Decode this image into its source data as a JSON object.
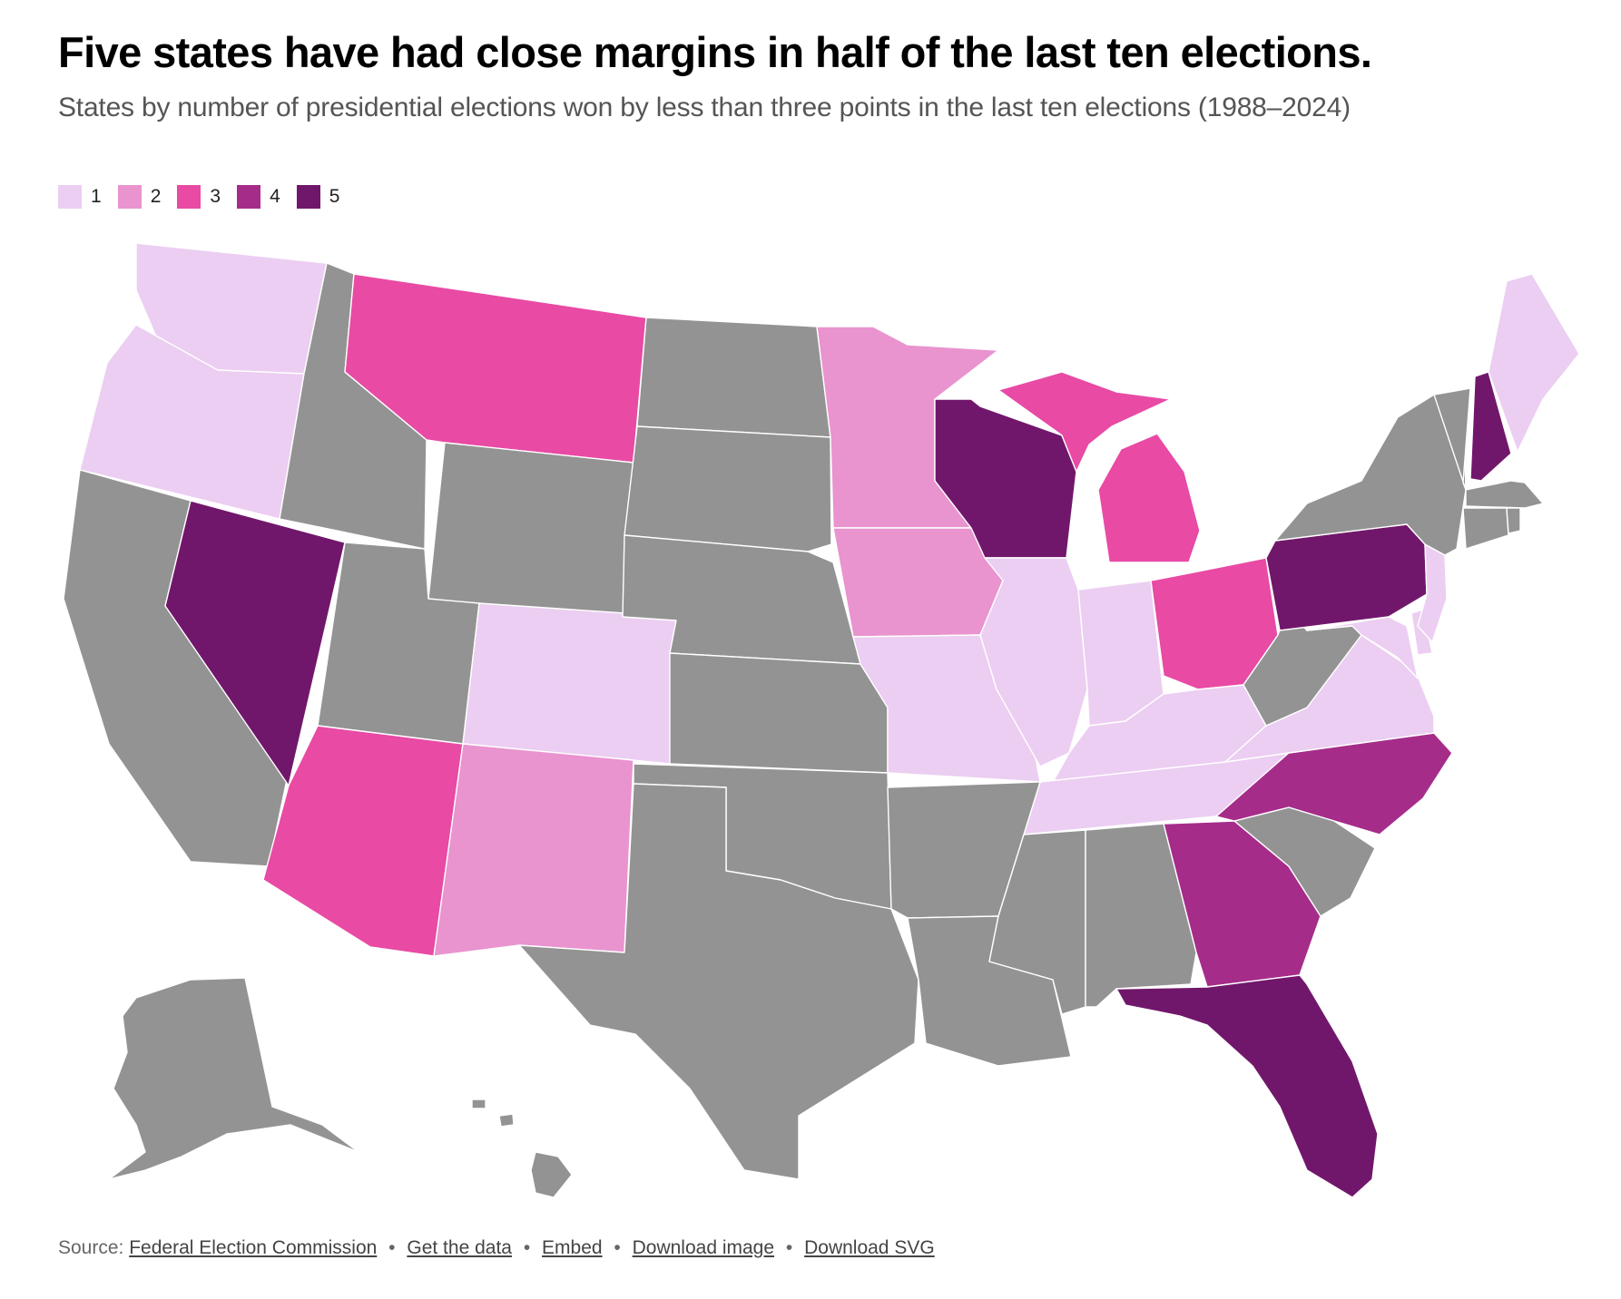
{
  "title": "Five states have had close margins in half of the last ten elections.",
  "subtitle": "States by number of presidential elections won by less than three points in the last ten elections (1988–2024)",
  "legend": [
    {
      "label": "1",
      "color": "#eccef2"
    },
    {
      "label": "2",
      "color": "#e993cf"
    },
    {
      "label": "3",
      "color": "#e84aa4"
    },
    {
      "label": "4",
      "color": "#a62c8a"
    },
    {
      "label": "5",
      "color": "#71176b"
    }
  ],
  "no_value_color": "#939393",
  "map_data": {
    "counts": {
      "WA": 1,
      "OR": 1,
      "MT": 3,
      "MN": 2,
      "WI": 5,
      "MI": 3,
      "NV": 5,
      "CO": 1,
      "IA": 2,
      "IL": 1,
      "IN": 1,
      "OH": 3,
      "PA": 5,
      "NH": 5,
      "ME": 1,
      "NJ": 1,
      "MO": 1,
      "KY": 1,
      "TN": 1,
      "VA": 1,
      "MD": 1,
      "DE": 1,
      "AZ": 3,
      "NM": 2,
      "NC": 4,
      "GA": 4,
      "FL": 5
    }
  },
  "footer": {
    "source_prefix": "Source:",
    "source_link": "Federal Election Commission",
    "get_data": "Get the data",
    "embed": "Embed",
    "download_image": "Download image",
    "download_svg": "Download SVG",
    "separator": "•"
  }
}
